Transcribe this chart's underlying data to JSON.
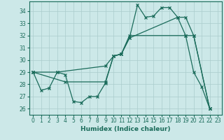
{
  "xlabel": "Humidex (Indice chaleur)",
  "bg_color": "#cce8e8",
  "line_color": "#1a6b5a",
  "grid_color": "#aacccc",
  "xlim": [
    -0.5,
    23.5
  ],
  "ylim": [
    25.5,
    34.8
  ],
  "yticks": [
    26,
    27,
    28,
    29,
    30,
    31,
    32,
    33,
    34
  ],
  "xticks": [
    0,
    1,
    2,
    3,
    4,
    5,
    6,
    7,
    8,
    9,
    10,
    11,
    12,
    13,
    14,
    15,
    16,
    17,
    18,
    19,
    20,
    21,
    22,
    23
  ],
  "curve1_x": [
    0,
    1,
    2,
    3,
    4,
    5,
    6,
    7,
    8,
    9,
    10,
    11,
    12,
    13,
    14,
    15,
    16,
    17,
    18,
    19,
    20,
    21,
    22
  ],
  "curve1_y": [
    29.0,
    27.5,
    27.7,
    29.0,
    28.8,
    26.6,
    26.5,
    27.0,
    27.0,
    28.1,
    30.3,
    30.5,
    31.8,
    34.5,
    33.5,
    33.6,
    34.3,
    34.3,
    33.5,
    32.0,
    29.0,
    27.8,
    26.0
  ],
  "curve2_x": [
    0,
    3,
    9,
    10,
    11,
    12,
    18,
    19,
    20,
    22
  ],
  "curve2_y": [
    29.0,
    29.0,
    29.5,
    30.3,
    30.5,
    31.8,
    33.5,
    33.5,
    32.0,
    26.0
  ],
  "curve3_x": [
    0,
    4,
    9,
    10,
    11,
    12,
    19,
    20,
    22
  ],
  "curve3_y": [
    29.0,
    28.2,
    28.2,
    30.3,
    30.5,
    32.0,
    32.0,
    32.0,
    26.0
  ]
}
